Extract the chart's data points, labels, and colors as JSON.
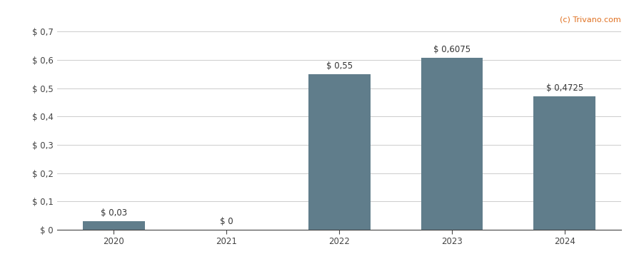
{
  "categories": [
    "2020",
    "2021",
    "2022",
    "2023",
    "2024"
  ],
  "values": [
    0.03,
    0.0,
    0.55,
    0.6075,
    0.4725
  ],
  "bar_color": "#607d8b",
  "bar_width": 0.55,
  "ylim": [
    0,
    0.7
  ],
  "yticks": [
    0.0,
    0.1,
    0.2,
    0.3,
    0.4,
    0.5,
    0.6,
    0.7
  ],
  "ytick_labels": [
    "$ 0",
    "$ 0,1",
    "$ 0,2",
    "$ 0,3",
    "$ 0,4",
    "$ 0,5",
    "$ 0,6",
    "$ 0,7"
  ],
  "bar_labels": [
    "$ 0,03",
    "$ 0",
    "$ 0,55",
    "$ 0,6075",
    "$ 0,4725"
  ],
  "watermark": "(c) Trivano.com",
  "background_color": "#ffffff",
  "grid_color": "#cccccc",
  "label_fontsize": 8.5,
  "tick_fontsize": 8.5,
  "watermark_fontsize": 8
}
